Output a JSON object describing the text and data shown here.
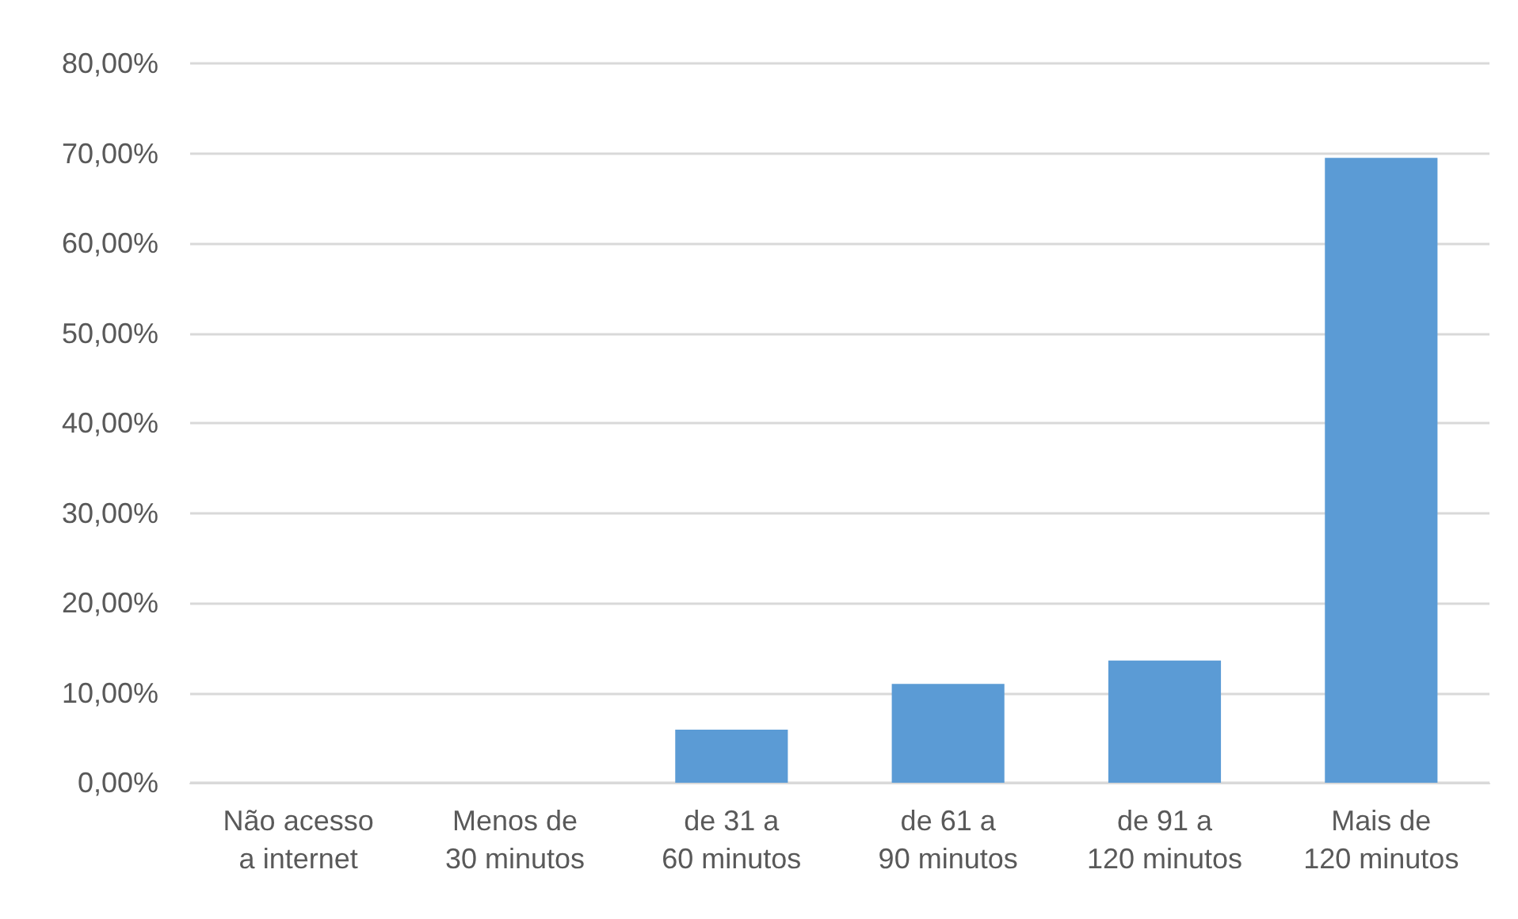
{
  "chart_data": {
    "type": "bar",
    "categories": [
      "Não acesso a internet",
      "Menos de 30 minutos",
      "de 31 a 60 minutos",
      "de 61 a 90 minutos",
      "de 91 a 120 minutos",
      "Mais de 120 minutos"
    ],
    "values": [
      0,
      0,
      5.9,
      11.0,
      13.6,
      69.5
    ],
    "color": "#5b9bd5",
    "ylim": [
      0,
      80
    ],
    "yticks": [
      {
        "value": 0,
        "label": "0,00%"
      },
      {
        "value": 10,
        "label": "10,00%"
      },
      {
        "value": 20,
        "label": "20,00%"
      },
      {
        "value": 30,
        "label": "30,00%"
      },
      {
        "value": 40,
        "label": "40,00%"
      },
      {
        "value": 50,
        "label": "50,00%"
      },
      {
        "value": 60,
        "label": "60,00%"
      },
      {
        "value": 70,
        "label": "70,00%"
      },
      {
        "value": 80,
        "label": "80,00%"
      }
    ],
    "grid": "y"
  }
}
